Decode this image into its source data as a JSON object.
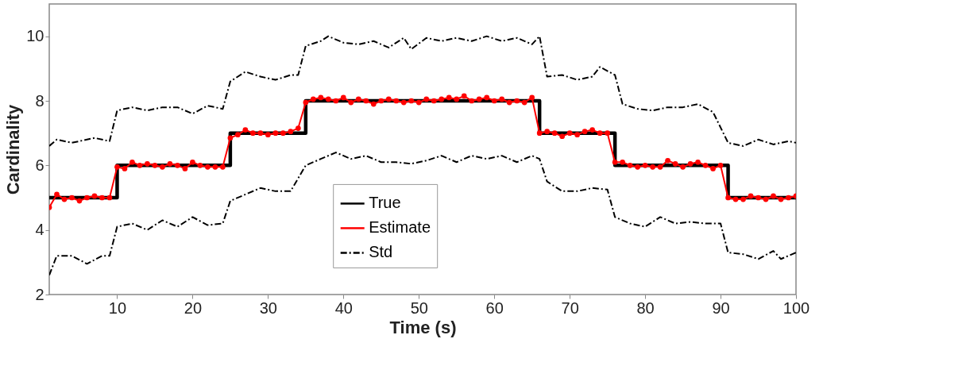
{
  "chart_data": {
    "type": "line",
    "xlabel": "Time (s)",
    "ylabel": "Cardinality",
    "xlim": [
      1,
      100
    ],
    "xticks": [
      10,
      20,
      30,
      40,
      50,
      60,
      70,
      80,
      90,
      100
    ],
    "ylim": [
      2,
      11
    ],
    "yticks": [
      2,
      4,
      6,
      8,
      10
    ],
    "grid": false,
    "legend": "bottom",
    "series": [
      {
        "name": "True",
        "type": "step",
        "color": "#000000",
        "line_style": "solid",
        "marker": "none",
        "x": [
          1,
          10,
          25,
          35,
          66,
          76,
          91,
          100
        ],
        "values": [
          5,
          6,
          7,
          8,
          7,
          6,
          5,
          5
        ]
      },
      {
        "name": "Estimate",
        "type": "line",
        "color": "#ff0000",
        "line_style": "solid",
        "marker": "circle",
        "x": [
          1,
          2,
          3,
          4,
          5,
          6,
          7,
          8,
          9,
          10,
          11,
          12,
          13,
          14,
          15,
          16,
          17,
          18,
          19,
          20,
          21,
          22,
          23,
          24,
          25,
          26,
          27,
          28,
          29,
          30,
          31,
          32,
          33,
          34,
          35,
          36,
          37,
          38,
          39,
          40,
          41,
          42,
          43,
          44,
          45,
          46,
          47,
          48,
          49,
          50,
          51,
          52,
          53,
          54,
          55,
          56,
          57,
          58,
          59,
          60,
          61,
          62,
          63,
          64,
          65,
          66,
          67,
          68,
          69,
          70,
          71,
          72,
          73,
          74,
          75,
          76,
          77,
          78,
          79,
          80,
          81,
          82,
          83,
          84,
          85,
          86,
          87,
          88,
          89,
          90,
          91,
          92,
          93,
          94,
          95,
          96,
          97,
          98,
          99,
          100
        ],
        "values": [
          4.7,
          5.1,
          4.95,
          5.0,
          4.9,
          5.0,
          5.05,
          5.0,
          5.0,
          5.95,
          5.9,
          6.1,
          6.0,
          6.05,
          6.0,
          5.95,
          6.05,
          6.0,
          5.9,
          6.1,
          6.0,
          5.95,
          5.95,
          5.95,
          6.85,
          6.95,
          7.1,
          7.0,
          7.0,
          6.95,
          7.0,
          7.0,
          7.05,
          7.15,
          7.95,
          8.05,
          8.1,
          8.05,
          8.0,
          8.1,
          7.95,
          8.05,
          8.0,
          7.9,
          8.0,
          8.05,
          8.0,
          7.95,
          8.0,
          7.95,
          8.05,
          8.0,
          8.05,
          8.1,
          8.05,
          8.15,
          8.0,
          8.05,
          8.1,
          8.0,
          8.05,
          7.95,
          8.0,
          7.95,
          8.1,
          7.0,
          7.05,
          7.0,
          6.9,
          7.0,
          6.95,
          7.05,
          7.1,
          7.0,
          7.0,
          6.1,
          6.1,
          6.0,
          5.95,
          6.0,
          5.95,
          5.95,
          6.15,
          6.05,
          5.95,
          6.05,
          6.1,
          6.0,
          5.9,
          6.0,
          5.0,
          4.95,
          4.95,
          5.05,
          5.0,
          4.95,
          5.05,
          4.95,
          5.0,
          5.05
        ]
      },
      {
        "name": "Std",
        "type": "line",
        "color": "#000000",
        "line_style": "dashdot",
        "marker": "none",
        "x": [
          1,
          2,
          4,
          6,
          7,
          9,
          10,
          12,
          14,
          16,
          18,
          20,
          22,
          24,
          25,
          27,
          29,
          31,
          33,
          34,
          35,
          37,
          38,
          40,
          42,
          44,
          46,
          48,
          49,
          51,
          53,
          55,
          57,
          59,
          61,
          63,
          65,
          66,
          67,
          69,
          71,
          73,
          74,
          76,
          77,
          79,
          81,
          83,
          85,
          87,
          89,
          91,
          93,
          95,
          97,
          99,
          100
        ],
        "values": [
          6.6,
          6.8,
          6.7,
          6.8,
          6.85,
          6.75,
          7.7,
          7.8,
          7.7,
          7.8,
          7.8,
          7.6,
          7.85,
          7.75,
          8.6,
          8.9,
          8.75,
          8.65,
          8.8,
          8.8,
          9.7,
          9.85,
          10.0,
          9.8,
          9.75,
          9.85,
          9.65,
          9.95,
          9.6,
          9.95,
          9.85,
          9.95,
          9.85,
          10.0,
          9.85,
          9.95,
          9.75,
          10.0,
          8.75,
          8.8,
          8.65,
          8.75,
          9.05,
          8.8,
          7.9,
          7.75,
          7.7,
          7.8,
          7.8,
          7.9,
          7.65,
          6.7,
          6.6,
          6.8,
          6.65,
          6.75,
          6.7
        ]
      },
      {
        "type": "line",
        "color": "#000000",
        "line_style": "dashdot",
        "marker": "none",
        "x": [
          1,
          2,
          4,
          6,
          8,
          9,
          10,
          12,
          14,
          16,
          18,
          20,
          22,
          24,
          25,
          27,
          29,
          31,
          33,
          35,
          37,
          39,
          41,
          43,
          45,
          47,
          49,
          51,
          53,
          55,
          57,
          59,
          61,
          63,
          65,
          66,
          67,
          69,
          71,
          73,
          75,
          76,
          78,
          80,
          82,
          84,
          86,
          88,
          90,
          91,
          93,
          95,
          97,
          98,
          100
        ],
        "values": [
          2.6,
          3.2,
          3.2,
          2.95,
          3.2,
          3.2,
          4.1,
          4.2,
          4.0,
          4.3,
          4.1,
          4.4,
          4.15,
          4.2,
          4.9,
          5.1,
          5.3,
          5.2,
          5.2,
          6.0,
          6.2,
          6.4,
          6.2,
          6.3,
          6.1,
          6.1,
          6.05,
          6.15,
          6.3,
          6.1,
          6.3,
          6.2,
          6.3,
          6.1,
          6.3,
          6.2,
          5.5,
          5.2,
          5.2,
          5.3,
          5.25,
          4.4,
          4.2,
          4.1,
          4.4,
          4.2,
          4.25,
          4.2,
          4.2,
          3.3,
          3.25,
          3.1,
          3.35,
          3.1,
          3.3
        ]
      }
    ]
  }
}
